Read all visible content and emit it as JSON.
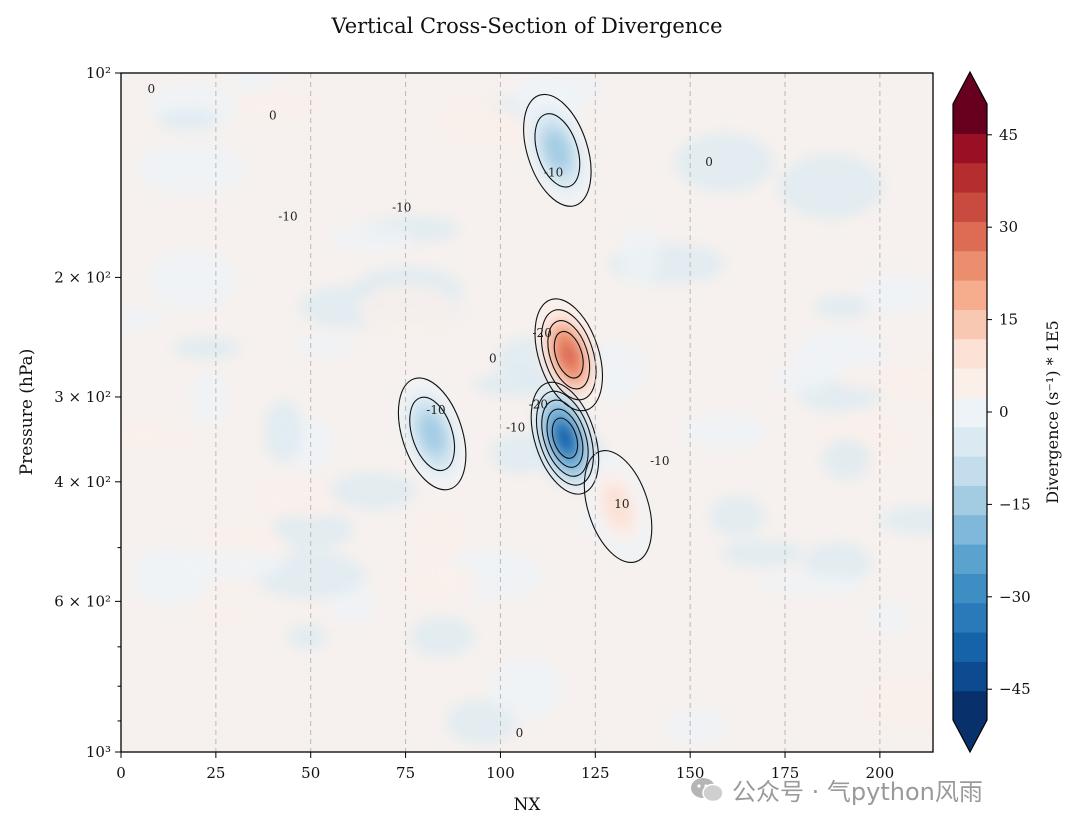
{
  "chart_data": {
    "type": "heatmap",
    "title": "Vertical Cross-Section of Divergence",
    "xlabel": "NX",
    "ylabel": "Pressure (hPa)",
    "xlim": [
      0,
      214
    ],
    "ylim": [
      1000,
      100
    ],
    "yscale": "log",
    "x_ticks": [
      0,
      25,
      50,
      75,
      100,
      125,
      150,
      175,
      200
    ],
    "y_ticks": [
      {
        "value": 100,
        "label": "10²"
      },
      {
        "value": 200,
        "label": "2 × 10²"
      },
      {
        "value": 300,
        "label": "3 × 10²"
      },
      {
        "value": 400,
        "label": "4 × 10²"
      },
      {
        "value": 600,
        "label": "6 × 10²"
      },
      {
        "value": 1000,
        "label": "10³"
      }
    ],
    "vertical_gridlines": [
      25,
      50,
      75,
      100,
      125,
      150,
      175,
      200
    ],
    "colorbar": {
      "label": "Divergence (s⁻¹) * 1E5",
      "vmin": -50,
      "vmax": 50,
      "step": 5,
      "ticks": [
        45,
        30,
        15,
        0,
        -15,
        -30,
        -45
      ],
      "extend": "both",
      "colors": [
        "#08306b",
        "#0d4a8f",
        "#1763aa",
        "#2a7aba",
        "#3e8ec4",
        "#5ba3cf",
        "#7fb8da",
        "#a3cce3",
        "#c3dded",
        "#dbeaf2",
        "#edf3f7",
        "#fbefea",
        "#fbe1d6",
        "#f9c8b2",
        "#f5ad8d",
        "#eb8e6e",
        "#dc6c54",
        "#c94a3e",
        "#b42e30",
        "#990f24",
        "#67001f"
      ]
    },
    "contour_levels": [
      -40,
      -30,
      -20,
      -10,
      0,
      10,
      20
    ],
    "features": [
      {
        "name": "upper positive core",
        "x": 118,
        "p": 260,
        "value": 35
      },
      {
        "name": "lower negative core",
        "x": 117,
        "p": 345,
        "value": -45
      },
      {
        "name": "upper negative band",
        "x": 115,
        "p": 130,
        "value": -15
      },
      {
        "name": "negative lobe",
        "x": 82,
        "p": 340,
        "value": -15
      },
      {
        "name": "positive spot",
        "x": 131,
        "p": 435,
        "value": 10
      }
    ],
    "contour_labels": [
      {
        "text": "0",
        "x": 8,
        "p": 107
      },
      {
        "text": "0",
        "x": 40,
        "p": 117
      },
      {
        "text": "-10",
        "x": 44,
        "p": 165
      },
      {
        "text": "-10",
        "x": 74,
        "p": 160
      },
      {
        "text": "-10",
        "x": 114,
        "p": 142
      },
      {
        "text": "0",
        "x": 155,
        "p": 137
      },
      {
        "text": "-20",
        "x": 111,
        "p": 245
      },
      {
        "text": "0",
        "x": 98,
        "p": 267
      },
      {
        "text": "-10",
        "x": 83,
        "p": 318
      },
      {
        "text": "-20",
        "x": 110,
        "p": 312
      },
      {
        "text": "-10",
        "x": 104,
        "p": 337
      },
      {
        "text": "-10",
        "x": 142,
        "p": 378
      },
      {
        "text": "10",
        "x": 132,
        "p": 437
      },
      {
        "text": "0",
        "x": 105,
        "p": 951
      }
    ]
  },
  "watermark": {
    "text": "公众号 · 气python风雨"
  }
}
